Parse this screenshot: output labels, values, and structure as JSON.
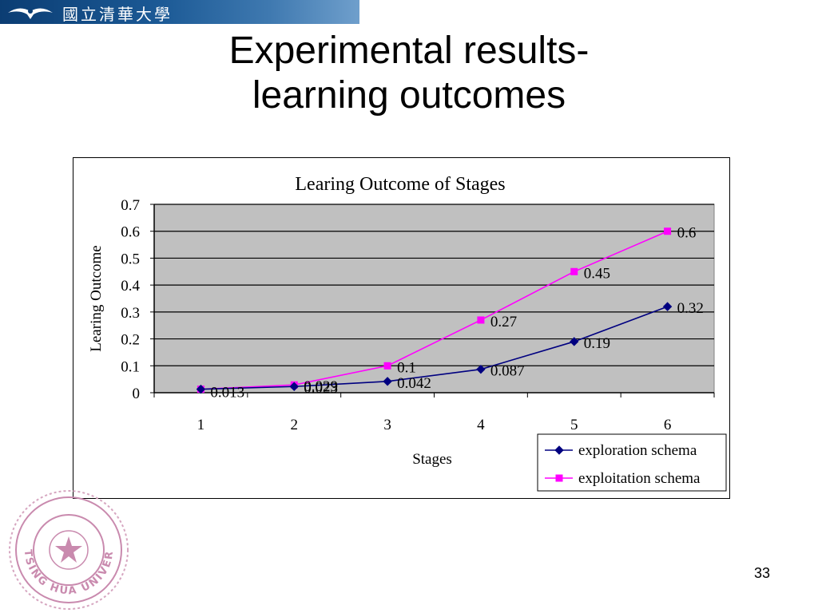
{
  "header": {
    "banner_text": "國立清華大學",
    "emblem_icon": "bird-emblem-icon"
  },
  "slide": {
    "title_line1": "Experimental results-",
    "title_line2": "learning outcomes",
    "page_number": "33"
  },
  "seal": {
    "ring_text": "TSING HUA UNIVERSITY",
    "chinese_text": "國立清華大學",
    "icon": "university-seal-icon"
  },
  "chart_data": {
    "type": "line",
    "title": "Learing Outcome of Stages",
    "xlabel": "Stages",
    "ylabel": "Learing Outcome",
    "categories": [
      "1",
      "2",
      "3",
      "4",
      "5",
      "6"
    ],
    "ylim": [
      0,
      0.7
    ],
    "yticks": [
      "0",
      "0.1",
      "0.2",
      "0.3",
      "0.4",
      "0.5",
      "0.6",
      "0.7"
    ],
    "grid": true,
    "legend_position": "bottom-right",
    "series": [
      {
        "name": "exploration schema",
        "marker": "diamond",
        "color": "#000080",
        "values": [
          0.013,
          0.023,
          0.042,
          0.087,
          0.19,
          0.32
        ],
        "labels": [
          "0.013",
          "0.023",
          "0.042",
          "0.087",
          "0.19",
          "0.32"
        ]
      },
      {
        "name": "exploitation schema",
        "marker": "square",
        "color": "#ff00ff",
        "values": [
          0.013,
          0.029,
          0.1,
          0.27,
          0.45,
          0.6
        ],
        "labels": [
          "",
          "0.029",
          "0.1",
          "0.27",
          "0.45",
          "0.6"
        ]
      }
    ]
  }
}
